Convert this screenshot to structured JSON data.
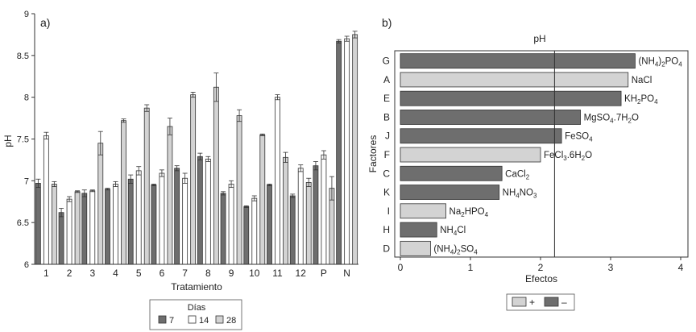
{
  "colors": {
    "dark": "#6e6e6e",
    "white": "#ffffff",
    "light": "#d3d3d3",
    "edge": "#333333"
  },
  "chart_data": [
    {
      "panel": "a)",
      "type": "bar",
      "xlabel": "Tratamiento",
      "ylabel": "pH",
      "ylim": [
        6,
        9
      ],
      "yticks": [
        "6",
        "6.5",
        "7",
        "7.5",
        "8",
        "8.5",
        "9"
      ],
      "categories": [
        "1",
        "2",
        "3",
        "4",
        "5",
        "6",
        "7",
        "8",
        "9",
        "10",
        "11",
        "12",
        "P",
        "N"
      ],
      "legend_title": "Días",
      "series": [
        {
          "name": "7",
          "color": "#6e6e6e",
          "values": [
            6.97,
            6.62,
            6.85,
            6.9,
            7.02,
            6.95,
            7.15,
            7.29,
            6.85,
            6.69,
            6.95,
            6.82,
            7.18,
            8.67
          ],
          "errors": [
            0.05,
            0.05,
            0.04,
            0.01,
            0.05,
            0.01,
            0.03,
            0.04,
            0.02,
            0.01,
            0.01,
            0.02,
            0.05,
            0.02
          ]
        },
        {
          "name": "14",
          "color": "#ffffff",
          "values": [
            7.54,
            6.78,
            6.88,
            6.96,
            7.12,
            7.09,
            7.03,
            7.26,
            6.96,
            6.79,
            8.0,
            7.15,
            7.31,
            8.7
          ],
          "errors": [
            0.04,
            0.03,
            0.01,
            0.03,
            0.05,
            0.04,
            0.06,
            0.03,
            0.04,
            0.03,
            0.03,
            0.04,
            0.05,
            0.03
          ]
        },
        {
          "name": "28",
          "color": "#d3d3d3",
          "values": [
            6.96,
            6.87,
            7.45,
            7.72,
            7.87,
            7.65,
            8.03,
            8.12,
            7.78,
            7.55,
            7.28,
            6.98,
            6.91,
            8.75
          ],
          "errors": [
            0.03,
            0.01,
            0.14,
            0.02,
            0.04,
            0.1,
            0.03,
            0.17,
            0.07,
            0.01,
            0.06,
            0.05,
            0.14,
            0.04
          ]
        }
      ]
    },
    {
      "panel": "b)",
      "type": "bar",
      "orientation": "horizontal",
      "title": "pH",
      "xlabel": "Efectos",
      "ylabel": "Factores",
      "xlim": [
        0,
        4
      ],
      "xticks": [
        "0",
        "1",
        "2",
        "3",
        "4"
      ],
      "reference_line": 2.2,
      "categories": [
        "G",
        "A",
        "E",
        "B",
        "J",
        "F",
        "C",
        "K",
        "I",
        "H",
        "D"
      ],
      "values": [
        3.35,
        3.25,
        3.15,
        2.57,
        2.3,
        2.0,
        1.45,
        1.41,
        0.65,
        0.52,
        0.43
      ],
      "signs": [
        "-",
        "+",
        "-",
        "-",
        "-",
        "+",
        "-",
        "-",
        "+",
        "-",
        "+"
      ],
      "labels": [
        [
          {
            "t": "(NH"
          },
          {
            "t": "4",
            "s": 1
          },
          {
            "t": ")"
          },
          {
            "t": "2",
            "s": 1
          },
          {
            "t": "PO"
          },
          {
            "t": "4",
            "s": 1
          }
        ],
        [
          {
            "t": "NaCl"
          }
        ],
        [
          {
            "t": "KH"
          },
          {
            "t": "2",
            "s": 1
          },
          {
            "t": "PO"
          },
          {
            "t": "4",
            "s": 1
          }
        ],
        [
          {
            "t": "MgSO"
          },
          {
            "t": "4",
            "s": 1
          },
          {
            "t": ".7H"
          },
          {
            "t": "2",
            "s": 1
          },
          {
            "t": "O"
          }
        ],
        [
          {
            "t": "FeSO"
          },
          {
            "t": "4",
            "s": 1
          }
        ],
        [
          {
            "t": "FeCl"
          },
          {
            "t": "3",
            "s": 1
          },
          {
            "t": ".6H"
          },
          {
            "t": "2",
            "s": 1
          },
          {
            "t": "O"
          }
        ],
        [
          {
            "t": "CaCl"
          },
          {
            "t": "2",
            "s": 1
          }
        ],
        [
          {
            "t": "NH"
          },
          {
            "t": "4",
            "s": 1
          },
          {
            "t": "NO"
          },
          {
            "t": "3",
            "s": 1
          }
        ],
        [
          {
            "t": "Na"
          },
          {
            "t": "2",
            "s": 1
          },
          {
            "t": "HPO"
          },
          {
            "t": "4",
            "s": 1
          }
        ],
        [
          {
            "t": "NH"
          },
          {
            "t": "4",
            "s": 1
          },
          {
            "t": "Cl"
          }
        ],
        [
          {
            "t": "(NH"
          },
          {
            "t": "4",
            "s": 1
          },
          {
            "t": ")"
          },
          {
            "t": "2",
            "s": 1
          },
          {
            "t": "SO"
          },
          {
            "t": "4",
            "s": 1
          }
        ]
      ],
      "legend": [
        {
          "name": "+",
          "color": "#d3d3d3"
        },
        {
          "name": "–",
          "color": "#6e6e6e"
        }
      ]
    }
  ]
}
